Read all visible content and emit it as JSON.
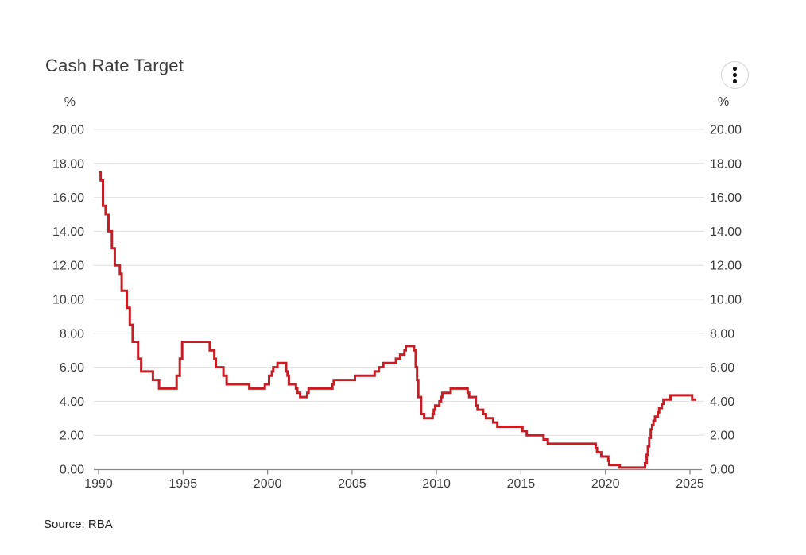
{
  "header": {
    "title": "Cash Rate Target",
    "menu_icon": "vertical-ellipsis"
  },
  "footer": {
    "source": "Source: RBA"
  },
  "chart_data": {
    "type": "line",
    "title": "Cash Rate Target",
    "unit_label": "%",
    "interpolation": "step-after",
    "line_color": "#c41f26",
    "grid_color": "#e0e0e0",
    "axis_color": "#8a8a8a",
    "label_color": "#3b3b3b",
    "grid": "horizontal-only",
    "legend": "none",
    "xlim": [
      1989.7,
      2025.7
    ],
    "ylim": [
      0,
      20
    ],
    "x_ticks": [
      1990,
      1995,
      2000,
      2005,
      2010,
      2015,
      2020,
      2025
    ],
    "y_ticks": [
      0,
      2,
      4,
      6,
      8,
      10,
      12,
      14,
      16,
      18,
      20
    ],
    "y_tick_labels": [
      "0.00",
      "2.00",
      "4.00",
      "6.00",
      "8.00",
      "10.00",
      "12.00",
      "14.00",
      "16.00",
      "18.00",
      "20.00"
    ],
    "x_end": 2025.38,
    "series": [
      {
        "name": "Cash Rate Target (%)",
        "points": [
          [
            1990.02,
            17.5
          ],
          [
            1990.12,
            17.0
          ],
          [
            1990.26,
            15.5
          ],
          [
            1990.42,
            15.0
          ],
          [
            1990.59,
            14.0
          ],
          [
            1990.79,
            13.0
          ],
          [
            1990.96,
            12.0
          ],
          [
            1991.26,
            11.5
          ],
          [
            1991.37,
            10.5
          ],
          [
            1991.67,
            9.5
          ],
          [
            1991.85,
            8.5
          ],
          [
            1992.02,
            7.5
          ],
          [
            1992.34,
            6.5
          ],
          [
            1992.52,
            5.75
          ],
          [
            1993.22,
            5.25
          ],
          [
            1993.58,
            4.75
          ],
          [
            1994.62,
            5.5
          ],
          [
            1994.81,
            6.5
          ],
          [
            1994.95,
            7.5
          ],
          [
            1996.58,
            7.0
          ],
          [
            1996.85,
            6.5
          ],
          [
            1996.94,
            6.0
          ],
          [
            1997.39,
            5.5
          ],
          [
            1997.58,
            5.0
          ],
          [
            1998.92,
            4.75
          ],
          [
            1999.84,
            5.0
          ],
          [
            2000.09,
            5.5
          ],
          [
            2000.26,
            5.75
          ],
          [
            2000.34,
            6.0
          ],
          [
            2000.59,
            6.25
          ],
          [
            2001.1,
            5.75
          ],
          [
            2001.18,
            5.5
          ],
          [
            2001.26,
            5.0
          ],
          [
            2001.68,
            4.75
          ],
          [
            2001.76,
            4.5
          ],
          [
            2001.93,
            4.25
          ],
          [
            2002.35,
            4.5
          ],
          [
            2002.43,
            4.75
          ],
          [
            2003.84,
            5.0
          ],
          [
            2003.92,
            5.25
          ],
          [
            2005.17,
            5.5
          ],
          [
            2006.34,
            5.75
          ],
          [
            2006.59,
            6.0
          ],
          [
            2006.85,
            6.25
          ],
          [
            2007.6,
            6.5
          ],
          [
            2007.85,
            6.75
          ],
          [
            2008.1,
            7.0
          ],
          [
            2008.18,
            7.25
          ],
          [
            2008.67,
            7.0
          ],
          [
            2008.77,
            6.0
          ],
          [
            2008.85,
            5.25
          ],
          [
            2008.92,
            4.25
          ],
          [
            2009.09,
            3.25
          ],
          [
            2009.27,
            3.0
          ],
          [
            2009.77,
            3.25
          ],
          [
            2009.84,
            3.5
          ],
          [
            2009.92,
            3.75
          ],
          [
            2010.17,
            4.0
          ],
          [
            2010.27,
            4.25
          ],
          [
            2010.34,
            4.5
          ],
          [
            2010.84,
            4.75
          ],
          [
            2011.84,
            4.5
          ],
          [
            2011.93,
            4.25
          ],
          [
            2012.33,
            3.75
          ],
          [
            2012.43,
            3.5
          ],
          [
            2012.76,
            3.25
          ],
          [
            2012.93,
            3.0
          ],
          [
            2013.35,
            2.75
          ],
          [
            2013.6,
            2.5
          ],
          [
            2015.09,
            2.25
          ],
          [
            2015.34,
            2.0
          ],
          [
            2016.34,
            1.75
          ],
          [
            2016.59,
            1.5
          ],
          [
            2019.42,
            1.25
          ],
          [
            2019.5,
            1.0
          ],
          [
            2019.75,
            0.75
          ],
          [
            2020.17,
            0.5
          ],
          [
            2020.22,
            0.25
          ],
          [
            2020.84,
            0.1
          ],
          [
            2022.34,
            0.35
          ],
          [
            2022.44,
            0.85
          ],
          [
            2022.51,
            1.35
          ],
          [
            2022.59,
            1.85
          ],
          [
            2022.68,
            2.35
          ],
          [
            2022.76,
            2.6
          ],
          [
            2022.84,
            2.85
          ],
          [
            2022.93,
            3.1
          ],
          [
            2023.1,
            3.35
          ],
          [
            2023.18,
            3.6
          ],
          [
            2023.34,
            3.85
          ],
          [
            2023.43,
            4.1
          ],
          [
            2023.85,
            4.35
          ],
          [
            2025.13,
            4.1
          ]
        ]
      }
    ],
    "source": "Source: RBA"
  }
}
